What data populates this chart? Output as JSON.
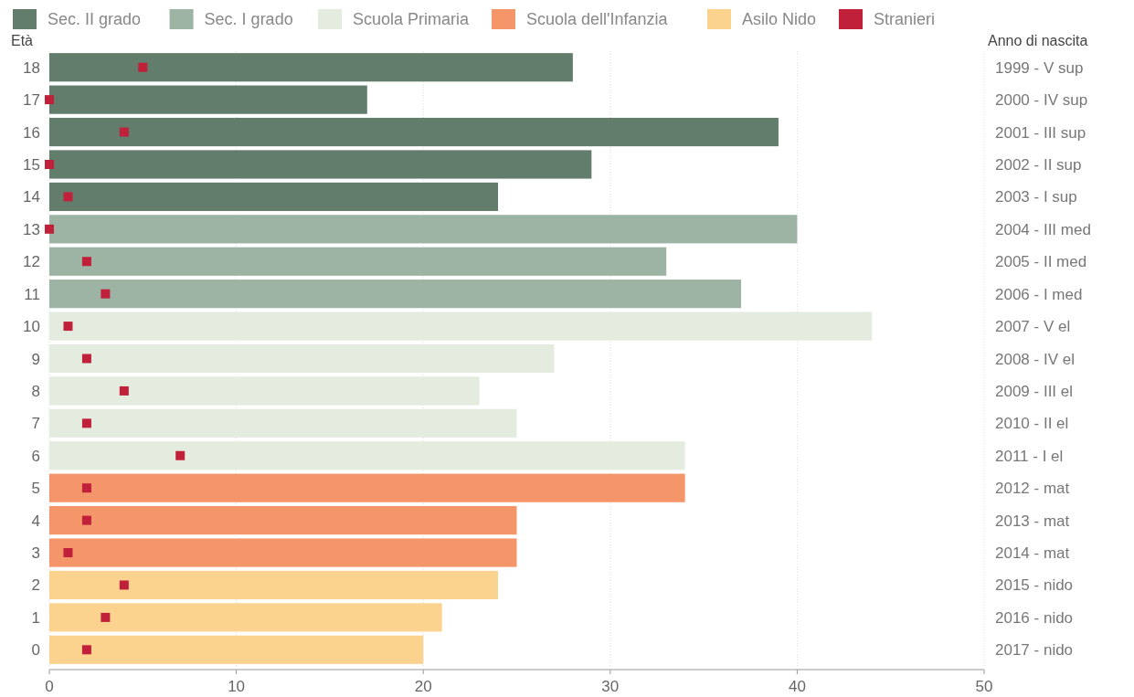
{
  "chart_data": {
    "type": "bar",
    "orientation": "horizontal",
    "ylabel": "Età",
    "y2label": "Anno di nascita",
    "categories": [
      "18",
      "17",
      "16",
      "15",
      "14",
      "13",
      "12",
      "11",
      "10",
      "9",
      "8",
      "7",
      "6",
      "5",
      "4",
      "3",
      "2",
      "1",
      "0"
    ],
    "y2_categories": [
      "1999 - V sup",
      "2000 - IV sup",
      "2001 - III sup",
      "2002 - II sup",
      "2003 - I sup",
      "2004 - III med",
      "2005 - II med",
      "2006 - I med",
      "2007 - V el",
      "2008 - IV el",
      "2009 - III el",
      "2010 - II el",
      "2011 - I el",
      "2012 - mat",
      "2013 - mat",
      "2014 - mat",
      "2015 - nido",
      "2016 - nido",
      "2017 - nido"
    ],
    "series": [
      {
        "name": "Sec. II grado",
        "color": "#627d6c",
        "values": [
          28,
          17,
          39,
          29,
          24,
          null,
          null,
          null,
          null,
          null,
          null,
          null,
          null,
          null,
          null,
          null,
          null,
          null,
          null
        ]
      },
      {
        "name": "Sec. I grado",
        "color": "#9db3a3",
        "values": [
          null,
          null,
          null,
          null,
          null,
          40,
          33,
          37,
          null,
          null,
          null,
          null,
          null,
          null,
          null,
          null,
          null,
          null,
          null
        ]
      },
      {
        "name": "Scuola Primaria",
        "color": "#e4ece0",
        "values": [
          null,
          null,
          null,
          null,
          null,
          null,
          null,
          null,
          44,
          27,
          23,
          25,
          34,
          null,
          null,
          null,
          null,
          null,
          null
        ]
      },
      {
        "name": "Scuola dell'Infanzia",
        "color": "#f5956a",
        "values": [
          null,
          null,
          null,
          null,
          null,
          null,
          null,
          null,
          null,
          null,
          null,
          null,
          null,
          34,
          25,
          25,
          null,
          null,
          null
        ]
      },
      {
        "name": "Asilo Nido",
        "color": "#fbd38f",
        "values": [
          null,
          null,
          null,
          null,
          null,
          null,
          null,
          null,
          null,
          null,
          null,
          null,
          null,
          null,
          null,
          null,
          24,
          21,
          20
        ]
      },
      {
        "name": "Stranieri",
        "type": "scatter",
        "marker": "square",
        "color": "#c0203a",
        "values": [
          5,
          0,
          4,
          0,
          1,
          0,
          2,
          3,
          1,
          2,
          4,
          2,
          7,
          2,
          2,
          1,
          4,
          3,
          2
        ]
      }
    ],
    "xlim": [
      0,
      50
    ],
    "xticks": [
      0,
      10,
      20,
      30,
      40,
      50
    ],
    "grid": "x",
    "legend": "top"
  }
}
